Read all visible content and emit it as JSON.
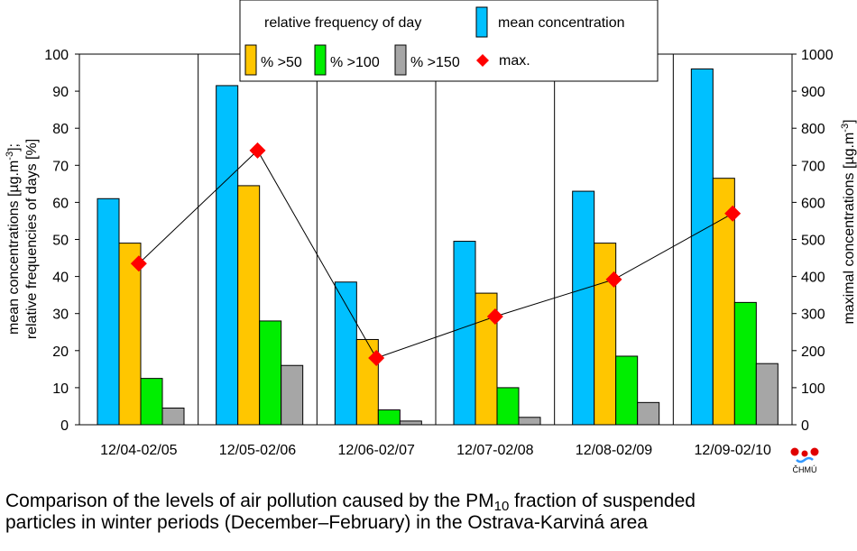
{
  "chart_data": {
    "type": "bar",
    "categories": [
      "12/04-02/05",
      "12/05-02/06",
      "12/06-02/07",
      "12/07-02/08",
      "12/08-02/09",
      "12/09-02/10"
    ],
    "series": [
      {
        "name": "mean concentration",
        "values": [
          61,
          91.5,
          38.5,
          49.5,
          63,
          96
        ],
        "color": "#00c0ff",
        "axis": "left"
      },
      {
        "name": "% >50",
        "values": [
          49,
          64.5,
          23,
          35.5,
          49,
          66.5
        ],
        "color": "#ffc600",
        "axis": "left"
      },
      {
        "name": "% >100",
        "values": [
          12.5,
          28,
          4,
          10,
          18.5,
          33
        ],
        "color": "#00ee00",
        "axis": "left"
      },
      {
        "name": "% >150",
        "values": [
          4.5,
          16,
          1,
          2,
          6,
          16.5
        ],
        "color": "#a6a6a6",
        "axis": "left"
      },
      {
        "name": "max.",
        "values": [
          435,
          740,
          180,
          292,
          392,
          570
        ],
        "color": "#ff0000",
        "type": "line",
        "axis": "right"
      }
    ],
    "legend": {
      "group_title": "relative frequency of day",
      "placement": "top"
    },
    "ylabel_left_line1_a": "mean concentrations [µg.m",
    "ylabel_left_line1_sup": "-3",
    "ylabel_left_line1_b": "];",
    "ylabel_left_line2": "relative frequencies of days [%]",
    "ylabel_right_a": "maximal concentrations [µg.m",
    "ylabel_right_sup": "-3",
    "ylabel_right_b": "]",
    "ylim_left": [
      0,
      100
    ],
    "ylim_right": [
      0,
      1000
    ],
    "yticks_left": [
      "0",
      "10",
      "20",
      "30",
      "40",
      "50",
      "60",
      "70",
      "80",
      "90",
      "100"
    ],
    "yticks_right": [
      "0",
      "100",
      "200",
      "300",
      "400",
      "500",
      "600",
      "700",
      "800",
      "900",
      "1000"
    ],
    "grid": "vertical category separators"
  },
  "logo": {
    "text": "ČHMÚ"
  },
  "caption": {
    "line1_a": "Comparison of the levels of air pollution caused by the PM",
    "line1_sub": "10",
    "line1_b": " fraction of suspended",
    "line2": "particles in winter periods (December–February) in the Ostrava-Karviná area"
  }
}
